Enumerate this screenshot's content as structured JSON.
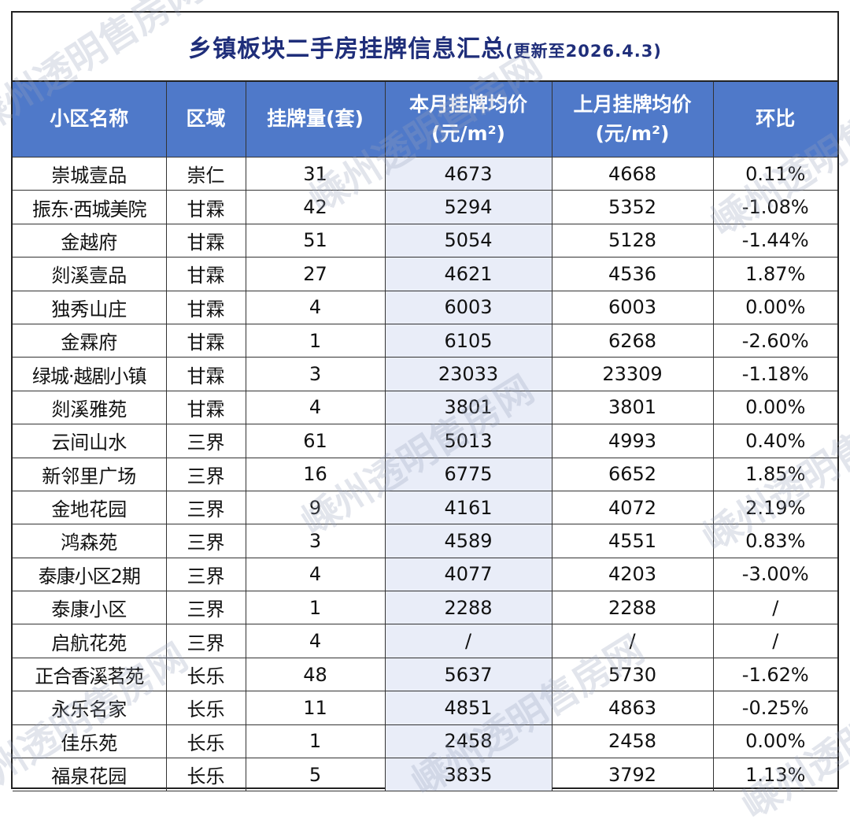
{
  "title": {
    "main": "乡镇板块二手房挂牌信息汇总",
    "sub": "(更新至2026.4.3)"
  },
  "headers": {
    "name": "小区名称",
    "region": "区域",
    "listings": "挂牌量(套)",
    "current_price_line1": "本月挂牌均价",
    "current_price_line2": "(元/m²)",
    "previous_price_line1": "上月挂牌均价",
    "previous_price_line2": "(元/m²)",
    "change": "环比"
  },
  "rows": [
    {
      "name": "崇城壹品",
      "region": "崇仁",
      "listings": "31",
      "current": "4673",
      "previous": "4668",
      "change": "0.11%"
    },
    {
      "name": "振东·西城美院",
      "region": "甘霖",
      "listings": "42",
      "current": "5294",
      "previous": "5352",
      "change": "-1.08%"
    },
    {
      "name": "金越府",
      "region": "甘霖",
      "listings": "51",
      "current": "5054",
      "previous": "5128",
      "change": "-1.44%"
    },
    {
      "name": "剡溪壹品",
      "region": "甘霖",
      "listings": "27",
      "current": "4621",
      "previous": "4536",
      "change": "1.87%"
    },
    {
      "name": "独秀山庄",
      "region": "甘霖",
      "listings": "4",
      "current": "6003",
      "previous": "6003",
      "change": "0.00%"
    },
    {
      "name": "金霖府",
      "region": "甘霖",
      "listings": "1",
      "current": "6105",
      "previous": "6268",
      "change": "-2.60%"
    },
    {
      "name": "绿城·越剧小镇",
      "region": "甘霖",
      "listings": "3",
      "current": "23033",
      "previous": "23309",
      "change": "-1.18%"
    },
    {
      "name": "剡溪雅苑",
      "region": "甘霖",
      "listings": "4",
      "current": "3801",
      "previous": "3801",
      "change": "0.00%"
    },
    {
      "name": "云间山水",
      "region": "三界",
      "listings": "61",
      "current": "5013",
      "previous": "4993",
      "change": "0.40%"
    },
    {
      "name": "新邻里广场",
      "region": "三界",
      "listings": "16",
      "current": "6775",
      "previous": "6652",
      "change": "1.85%"
    },
    {
      "name": "金地花园",
      "region": "三界",
      "listings": "9",
      "current": "4161",
      "previous": "4072",
      "change": "2.19%"
    },
    {
      "name": "鸿森苑",
      "region": "三界",
      "listings": "3",
      "current": "4589",
      "previous": "4551",
      "change": "0.83%"
    },
    {
      "name": "泰康小区2期",
      "region": "三界",
      "listings": "4",
      "current": "4077",
      "previous": "4203",
      "change": "-3.00%"
    },
    {
      "name": "泰康小区",
      "region": "三界",
      "listings": "1",
      "current": "2288",
      "previous": "2288",
      "change": "/"
    },
    {
      "name": "启航花苑",
      "region": "三界",
      "listings": "4",
      "current": "/",
      "previous": "/",
      "change": "/"
    },
    {
      "name": "正合香溪茗苑",
      "region": "长乐",
      "listings": "48",
      "current": "5637",
      "previous": "5730",
      "change": "-1.62%"
    },
    {
      "name": "永乐名家",
      "region": "长乐",
      "listings": "11",
      "current": "4851",
      "previous": "4863",
      "change": "-0.25%"
    },
    {
      "name": "佳乐苑",
      "region": "长乐",
      "listings": "1",
      "current": "2458",
      "previous": "2458",
      "change": "0.00%"
    },
    {
      "name": "福泉花园",
      "region": "长乐",
      "listings": "5",
      "current": "3835",
      "previous": "3792",
      "change": "1.13%"
    }
  ],
  "watermark": "嵊州透明售房网"
}
